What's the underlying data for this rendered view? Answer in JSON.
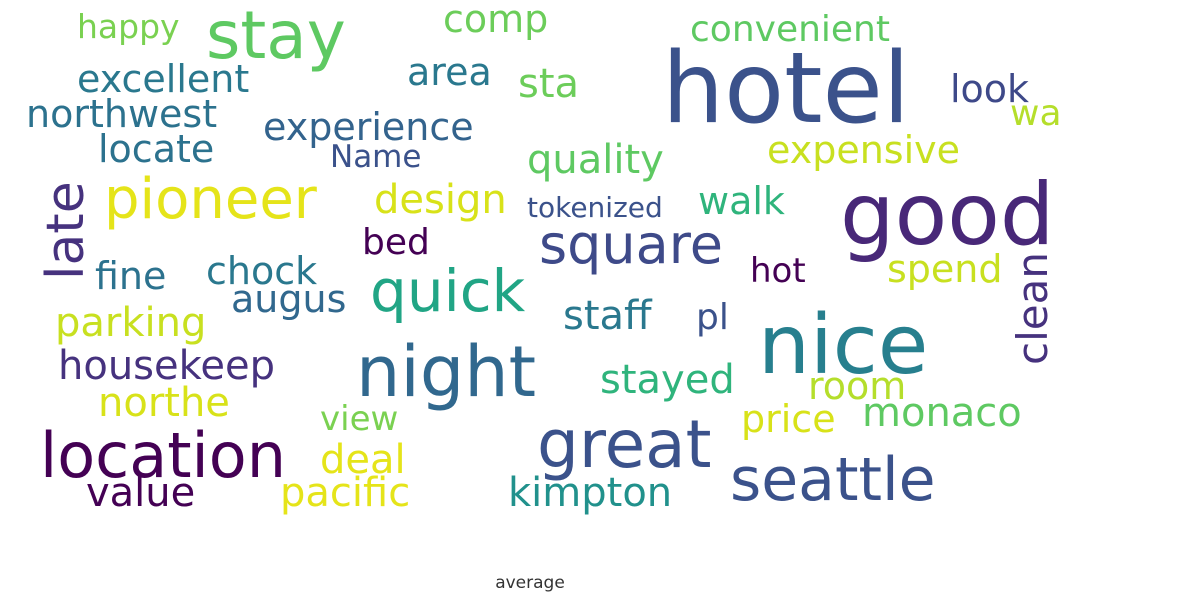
{
  "caption": "average",
  "words": [
    {
      "text": "hotel",
      "color": "#3b528b"
    },
    {
      "text": "good",
      "color": "#482878"
    },
    {
      "text": "nice",
      "color": "#277f8e"
    },
    {
      "text": "night",
      "color": "#31688e"
    },
    {
      "text": "location",
      "color": "#440154"
    },
    {
      "text": "great",
      "color": "#3b528b"
    },
    {
      "text": "seattle",
      "color": "#3b528b"
    },
    {
      "text": "stay",
      "color": "#5ec962"
    },
    {
      "text": "pioneer",
      "color": "#e5e419"
    },
    {
      "text": "square",
      "color": "#3e4a89"
    },
    {
      "text": "quick",
      "color": "#21a585"
    },
    {
      "text": "late",
      "color": "#46327e"
    },
    {
      "text": "happy",
      "color": "#7ad151"
    },
    {
      "text": "comp",
      "color": "#6ccd5a"
    },
    {
      "text": "convenient",
      "color": "#5ec962"
    },
    {
      "text": "excellent",
      "color": "#2a788e"
    },
    {
      "text": "area",
      "color": "#2a788e"
    },
    {
      "text": "sta",
      "color": "#6ccd5a"
    },
    {
      "text": "look",
      "color": "#3e4989"
    },
    {
      "text": "wa",
      "color": "#b5de2b"
    },
    {
      "text": "northwest",
      "color": "#2c728e"
    },
    {
      "text": "experience",
      "color": "#33638d"
    },
    {
      "text": "locate",
      "color": "#2c728e"
    },
    {
      "text": "Name",
      "color": "#3b528b"
    },
    {
      "text": "quality",
      "color": "#5ec962"
    },
    {
      "text": "expensive",
      "color": "#c8e020"
    },
    {
      "text": "design",
      "color": "#d8e219"
    },
    {
      "text": "tokenized",
      "color": "#3b528b"
    },
    {
      "text": "walk",
      "color": "#2fb47c"
    },
    {
      "text": "bed",
      "color": "#440154"
    },
    {
      "text": "fine",
      "color": "#2c728e"
    },
    {
      "text": "chock",
      "color": "#2a788e"
    },
    {
      "text": "augus",
      "color": "#31688e"
    },
    {
      "text": "hot",
      "color": "#440154"
    },
    {
      "text": "spend",
      "color": "#c8e020"
    },
    {
      "text": "clean",
      "color": "#46327e"
    },
    {
      "text": "parking",
      "color": "#c8e020"
    },
    {
      "text": "staff",
      "color": "#2a788e"
    },
    {
      "text": "pl",
      "color": "#3b528b"
    },
    {
      "text": "housekeep",
      "color": "#46327e"
    },
    {
      "text": "stayed",
      "color": "#2fb47c"
    },
    {
      "text": "room",
      "color": "#b5de2b"
    },
    {
      "text": "northe",
      "color": "#d8e219"
    },
    {
      "text": "view",
      "color": "#7ad151"
    },
    {
      "text": "price",
      "color": "#d8e219"
    },
    {
      "text": "monaco",
      "color": "#5ec962"
    },
    {
      "text": "deal",
      "color": "#e5e419"
    },
    {
      "text": "value",
      "color": "#440154"
    },
    {
      "text": "pacific",
      "color": "#e5e419"
    },
    {
      "text": "kimpton",
      "color": "#21918c"
    }
  ]
}
